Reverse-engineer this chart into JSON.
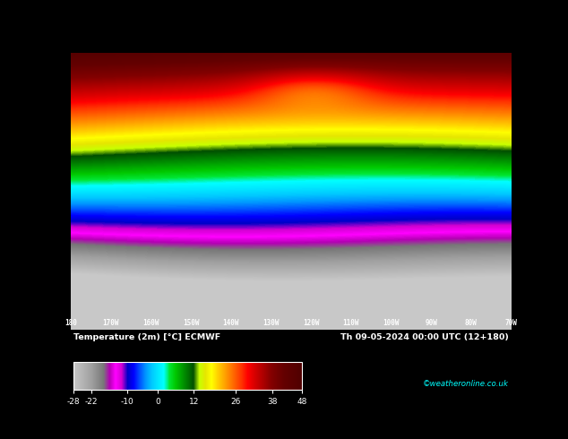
{
  "title_left": "Temperature (2m) [°C] ECMWF",
  "title_right": "Th 09-05-2024 00:00 UTC (12+180)",
  "tick_values": [
    -28,
    -22,
    -10,
    0,
    12,
    26,
    38,
    48
  ],
  "colormap_colors": [
    "#c8c8c8",
    "#a0a0a0",
    "#787878",
    "#b400b4",
    "#ff00ff",
    "#d200d2",
    "#0000c8",
    "#0000ff",
    "#0050ff",
    "#0096ff",
    "#00c8ff",
    "#00e6ff",
    "#00ffff",
    "#00e632",
    "#00c800",
    "#00a000",
    "#007800",
    "#005000",
    "#c8ff00",
    "#e6e600",
    "#ffff00",
    "#ffd200",
    "#ffaa00",
    "#ff8200",
    "#ff5a00",
    "#ff3200",
    "#ff0000",
    "#dc0000",
    "#be0000",
    "#a00000",
    "#820000",
    "#640000",
    "#500000"
  ],
  "colormap_breakpoints": [
    -28,
    -22,
    -18,
    -16,
    -14,
    -12,
    -10,
    -8,
    -6,
    -4,
    -2,
    0,
    2,
    4,
    6,
    8,
    10,
    12,
    14,
    16,
    18,
    20,
    22,
    24,
    26,
    28,
    30,
    32,
    34,
    36,
    38,
    42,
    48
  ],
  "bg_color": "#000000",
  "text_color": "#ffffff",
  "credit": "©weatheronline.co.uk",
  "fig_width": 6.34,
  "fig_height": 4.9,
  "lon_labels": [
    "180",
    "170W",
    "160W",
    "150W",
    "140W",
    "130W",
    "120W",
    "110W",
    "100W",
    "90W",
    "80W",
    "70W"
  ]
}
